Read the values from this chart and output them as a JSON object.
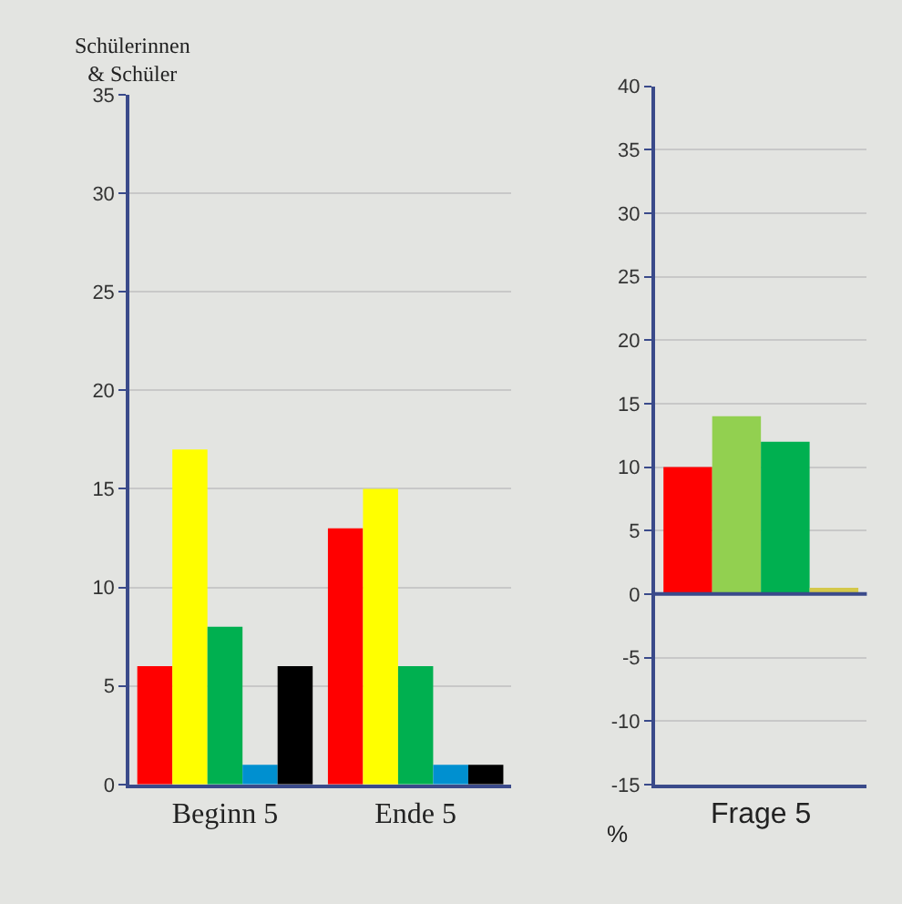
{
  "chart_data": [
    {
      "type": "bar",
      "ylabel": "Schülerinnen\n& Schüler",
      "categories": [
        "Beginn 5",
        "Ende 5"
      ],
      "ylim": [
        0,
        35
      ],
      "yticks": [
        0,
        5,
        10,
        15,
        20,
        25,
        30,
        35
      ],
      "grid": "y",
      "series": [
        {
          "color": "#ff0000",
          "values": [
            6,
            13
          ]
        },
        {
          "color": "#ffff00",
          "values": [
            17,
            15
          ]
        },
        {
          "color": "#00b050",
          "values": [
            8,
            6
          ]
        },
        {
          "color": "#0090d0",
          "values": [
            1,
            1
          ]
        },
        {
          "color": "#000000",
          "values": [
            6,
            1
          ]
        }
      ]
    },
    {
      "type": "bar",
      "ylabel": "%",
      "categories": [
        "Frage 5"
      ],
      "ylim": [
        -15,
        40
      ],
      "yticks": [
        -15,
        -10,
        -5,
        0,
        5,
        10,
        15,
        20,
        25,
        30,
        35,
        40
      ],
      "grid": "y",
      "ref_lines": [
        {
          "axis": "y",
          "value": 0,
          "color": "#3a4a8a"
        }
      ],
      "series": [
        {
          "color": "#ff0000",
          "values": [
            10
          ]
        },
        {
          "color": "#92d050",
          "values": [
            14
          ]
        },
        {
          "color": "#00b050",
          "values": [
            12
          ]
        },
        {
          "color": "#d4c84a",
          "values": [
            0.5
          ]
        }
      ]
    }
  ]
}
